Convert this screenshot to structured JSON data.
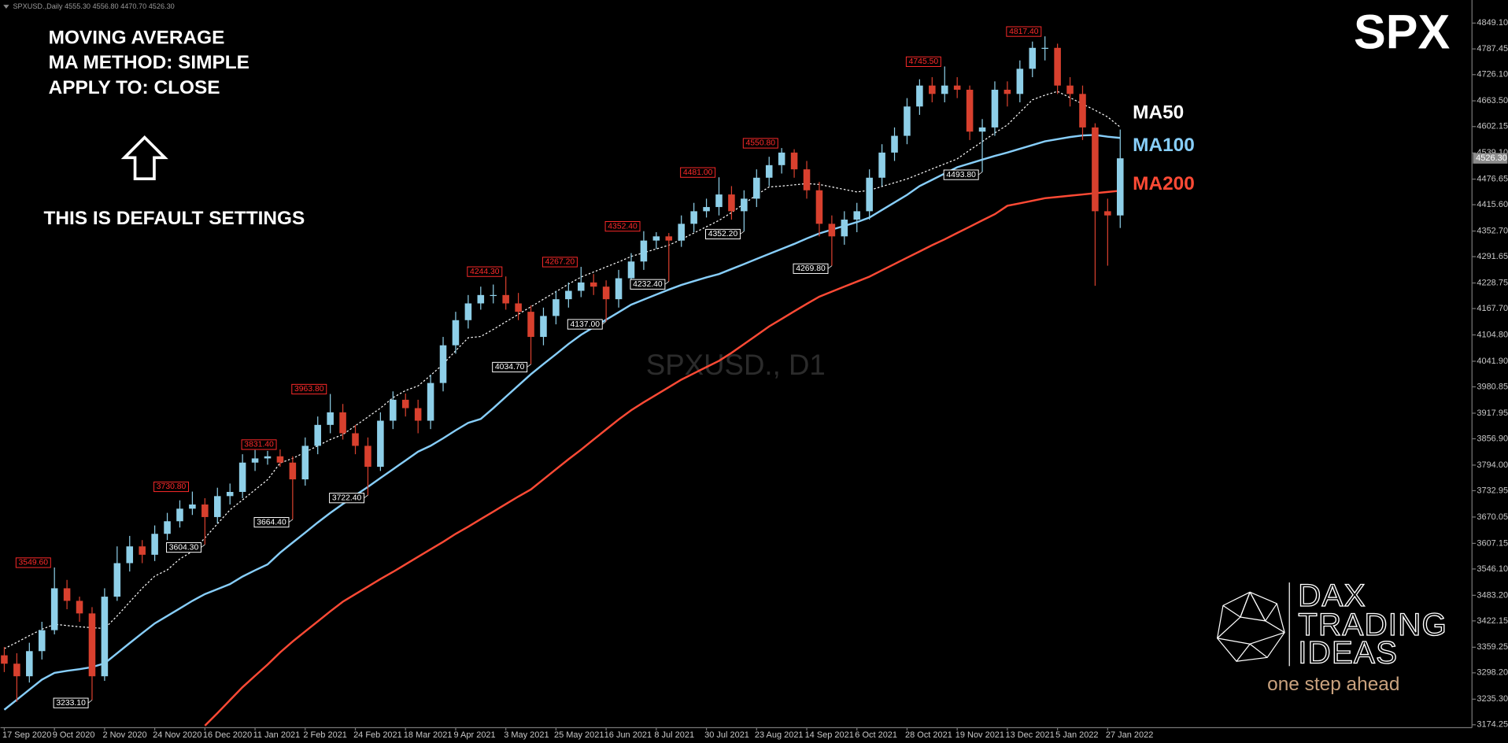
{
  "chart_data": {
    "type": "candlestick",
    "header": "SPXUSD.,Daily  4555.30 4556.80 4470.70 4526.30",
    "symbol_label": "SPX",
    "watermark": "SPXUSD., D1",
    "annotations": [
      "MOVING AVERAGE",
      "MA METHOD: SIMPLE",
      "APPLY TO: CLOSE",
      "THIS IS DEFAULT SETTINGS"
    ],
    "logo": {
      "lines": [
        "DAX",
        "TRADING",
        "IDEAS"
      ],
      "tagline": "one step ahead"
    },
    "categories": [
      "17 Sep 2020",
      null,
      null,
      null,
      "9 Oct 2020",
      null,
      null,
      null,
      "2 Nov 2020",
      null,
      null,
      null,
      "24 Nov 2020",
      null,
      null,
      null,
      "16 Dec 2020",
      null,
      null,
      null,
      "11 Jan 2021",
      null,
      null,
      null,
      "2 Feb 2021",
      null,
      null,
      null,
      "24 Feb 2021",
      null,
      null,
      null,
      "18 Mar 2021",
      null,
      null,
      null,
      "9 Apr 2021",
      null,
      null,
      null,
      "3 May 2021",
      null,
      null,
      null,
      "25 May 2021",
      null,
      null,
      null,
      "16 Jun 2021",
      null,
      null,
      null,
      "8 Jul 2021",
      null,
      null,
      null,
      "30 Jul 2021",
      null,
      null,
      null,
      "23 Aug 2021",
      null,
      null,
      null,
      "14 Sep 2021",
      null,
      null,
      null,
      "6 Oct 2021",
      null,
      null,
      null,
      "28 Oct 2021",
      null,
      null,
      null,
      "19 Nov 2021",
      null,
      null,
      null,
      "13 Dec 2021",
      null,
      null,
      null,
      "5 Jan 2022",
      null,
      null,
      null,
      "27 Jan 2022",
      null
    ],
    "open": [
      3340,
      3320,
      3290,
      3350,
      3400,
      3500,
      3470,
      3440,
      3290,
      3480,
      3560,
      3600,
      3580,
      3630,
      3660,
      3690,
      3700,
      3670,
      3720,
      3730,
      3800,
      3810,
      3815,
      3800,
      3760,
      3840,
      3890,
      3920,
      3870,
      3840,
      3790,
      3900,
      3950,
      3930,
      3900,
      3990,
      4080,
      4140,
      4180,
      4200,
      4200,
      4180,
      4160,
      4100,
      4150,
      4190,
      4210,
      4230,
      4220,
      4190,
      4240,
      4280,
      4330,
      4340,
      4330,
      4370,
      4400,
      4410,
      4440,
      4400,
      4430,
      4480,
      4510,
      4540,
      4500,
      4450,
      4370,
      4340,
      4380,
      4400,
      4480,
      4540,
      4580,
      4650,
      4700,
      4680,
      4700,
      4690,
      4590,
      4600,
      4690,
      4680,
      4740,
      4790,
      4790,
      4700,
      4680,
      4600,
      4400,
      4390
    ],
    "high": [
      3360,
      3345,
      3370,
      3420,
      3549.6,
      3520,
      3480,
      3455,
      3500,
      3600,
      3625,
      3615,
      3650,
      3680,
      3710,
      3730.8,
      3715,
      3740,
      3750,
      3820,
      3830,
      3828,
      3831.4,
      3815,
      3860,
      3910,
      3963.8,
      3940,
      3890,
      3860,
      3920,
      3970,
      3965,
      3950,
      4010,
      4100,
      4160,
      4200,
      4220,
      4225,
      4244.3,
      4205,
      4175,
      4170,
      4210,
      4230,
      4267.2,
      4250,
      4235,
      4260,
      4300,
      4352.4,
      4350,
      4348,
      4390,
      4420,
      4430,
      4481,
      4460,
      4450,
      4500,
      4530,
      4550.8,
      4548,
      4520,
      4470,
      4390,
      4400,
      4420,
      4500,
      4560,
      4600,
      4670,
      4715,
      4720,
      4745.5,
      4720,
      4700,
      4620,
      4710,
      4710,
      4760,
      4805,
      4817.4,
      4800,
      4720,
      4700,
      4610,
      4430,
      4595
    ],
    "low": [
      3300,
      3229,
      3275,
      3330,
      3390,
      3450,
      3420,
      3233.1,
      3279,
      3470,
      3540,
      3560,
      3565,
      3615,
      3645,
      3675,
      3604.3,
      3655,
      3700,
      3715,
      3780,
      3795,
      3790,
      3664.4,
      3745,
      3820,
      3870,
      3855,
      3820,
      3722.4,
      3780,
      3880,
      3910,
      3870,
      3880,
      3970,
      4060,
      4120,
      4165,
      4180,
      4165,
      4140,
      4034.7,
      4080,
      4130,
      4170,
      4195,
      4200,
      4137,
      4170,
      4220,
      4260,
      4310,
      4232.4,
      4315,
      4350,
      4385,
      4390,
      4380,
      4352.2,
      4410,
      4460,
      4490,
      4480,
      4430,
      4340,
      4269.8,
      4320,
      4350,
      4380,
      4460,
      4520,
      4560,
      4630,
      4660,
      4660,
      4670,
      4570,
      4493.8,
      4580,
      4650,
      4660,
      4720,
      4760,
      4680,
      4650,
      4570,
      4222,
      4270,
      4360
    ],
    "close": [
      3320,
      3290,
      3350,
      3400,
      3500,
      3470,
      3440,
      3290,
      3480,
      3560,
      3600,
      3580,
      3630,
      3660,
      3690,
      3700,
      3670,
      3720,
      3730,
      3800,
      3810,
      3815,
      3800,
      3760,
      3840,
      3890,
      3920,
      3870,
      3840,
      3790,
      3900,
      3950,
      3930,
      3900,
      3990,
      4080,
      4140,
      4180,
      4200,
      4200,
      4180,
      4160,
      4100,
      4150,
      4190,
      4210,
      4230,
      4220,
      4190,
      4240,
      4280,
      4330,
      4340,
      4330,
      4370,
      4400,
      4410,
      4440,
      4400,
      4430,
      4480,
      4510,
      4540,
      4500,
      4450,
      4370,
      4340,
      4380,
      4400,
      4480,
      4540,
      4580,
      4650,
      4700,
      4680,
      4700,
      4690,
      4590,
      4600,
      4690,
      4680,
      4740,
      4790,
      4790,
      4700,
      4680,
      4600,
      4400,
      4390,
      4526.3
    ],
    "high_labels": [
      null,
      null,
      null,
      null,
      "3549.60",
      null,
      null,
      null,
      null,
      null,
      null,
      null,
      null,
      null,
      null,
      "3730.80",
      null,
      null,
      null,
      null,
      null,
      null,
      "3831.40",
      null,
      null,
      null,
      "3963.80",
      null,
      null,
      null,
      null,
      null,
      null,
      null,
      null,
      null,
      null,
      null,
      null,
      null,
      "4244.30",
      null,
      null,
      null,
      null,
      null,
      "4267.20",
      null,
      null,
      null,
      null,
      "4352.40",
      null,
      null,
      null,
      null,
      null,
      "4481.00",
      null,
      null,
      null,
      null,
      "4550.80",
      null,
      null,
      null,
      null,
      null,
      null,
      null,
      null,
      null,
      null,
      null,
      null,
      "4745.50",
      null,
      null,
      null,
      null,
      null,
      null,
      null,
      "4817.40",
      null,
      null,
      null,
      null,
      null,
      null
    ],
    "low_labels": [
      null,
      null,
      null,
      null,
      null,
      null,
      null,
      "3233.10",
      null,
      null,
      null,
      null,
      null,
      null,
      null,
      null,
      "3604.30",
      null,
      null,
      null,
      null,
      null,
      null,
      "3664.40",
      null,
      null,
      null,
      null,
      null,
      "3722.40",
      null,
      null,
      null,
      null,
      null,
      null,
      null,
      null,
      null,
      null,
      null,
      null,
      "4034.70",
      null,
      null,
      null,
      null,
      null,
      "4137.00",
      null,
      null,
      null,
      null,
      "4232.40",
      null,
      null,
      null,
      null,
      null,
      "4352.20",
      null,
      null,
      null,
      null,
      null,
      null,
      "4269.80",
      null,
      null,
      null,
      null,
      null,
      null,
      null,
      null,
      null,
      null,
      null,
      "4493.80",
      null,
      null,
      null,
      null,
      null,
      null,
      null,
      null,
      null,
      null,
      null
    ],
    "up_color": "#8ecfe8",
    "down_color": "#d8402e",
    "high_label_color": "#ff2a2a",
    "low_label_color": "#ffffff",
    "series": [
      {
        "name": "MA50",
        "color": "#ffffff",
        "dashed": true,
        "values": [
          3356,
          3371,
          3387,
          3402,
          3414,
          3411,
          3408,
          3406,
          3404,
          3434,
          3467,
          3500,
          3529,
          3544,
          3570,
          3588,
          3620,
          3654,
          3687,
          3711,
          3735,
          3759,
          3799,
          3810,
          3825,
          3840,
          3855,
          3867,
          3888,
          3909,
          3930,
          3955,
          3972,
          3983,
          4008,
          4035,
          4067,
          4098,
          4101,
          4118,
          4136,
          4154,
          4172,
          4190,
          4208,
          4226,
          4243,
          4255,
          4267,
          4279,
          4292,
          4301,
          4310,
          4319,
          4333,
          4348,
          4363,
          4378,
          4397,
          4418,
          4439,
          4458,
          4460,
          4463,
          4466,
          4464,
          4458,
          4452,
          4446,
          4450,
          4459,
          4468,
          4477,
          4489,
          4501,
          4513,
          4525,
          4546,
          4566,
          4587,
          4606,
          4636,
          4666,
          4677,
          4686,
          4671,
          4656,
          4641,
          4625,
          4601
        ]
      },
      {
        "name": "MA100",
        "color": "#87cefa",
        "values": [
          3210,
          3234,
          3258,
          3282,
          3298,
          3303,
          3307,
          3312,
          3321,
          3345,
          3369,
          3393,
          3416,
          3434,
          3452,
          3470,
          3486,
          3498,
          3510,
          3528,
          3543,
          3557,
          3585,
          3609,
          3633,
          3657,
          3680,
          3701,
          3722,
          3742,
          3763,
          3784,
          3805,
          3826,
          3840,
          3858,
          3877,
          3895,
          3904,
          3930,
          3957,
          3984,
          4011,
          4035,
          4059,
          4083,
          4105,
          4123,
          4141,
          4159,
          4177,
          4189,
          4201,
          4213,
          4224,
          4233,
          4242,
          4250,
          4262,
          4274,
          4286,
          4298,
          4310,
          4322,
          4335,
          4347,
          4356,
          4365,
          4374,
          4385,
          4403,
          4421,
          4439,
          4460,
          4475,
          4490,
          4505,
          4514,
          4523,
          4532,
          4540,
          4549,
          4558,
          4567,
          4572,
          4577,
          4581,
          4582,
          4578,
          4575
        ]
      },
      {
        "name": "MA200",
        "color": "#ff4a35",
        "values": [
          null,
          null,
          null,
          null,
          null,
          null,
          null,
          null,
          null,
          null,
          null,
          null,
          null,
          null,
          null,
          null,
          3172,
          3202,
          3233,
          3264,
          3291,
          3318,
          3347,
          3373,
          3397,
          3421,
          3445,
          3468,
          3486,
          3504,
          3522,
          3539,
          3557,
          3575,
          3593,
          3611,
          3630,
          3647,
          3665,
          3683,
          3701,
          3719,
          3736,
          3760,
          3784,
          3808,
          3831,
          3855,
          3879,
          3903,
          3925,
          3944,
          3962,
          3980,
          3998,
          4013,
          4028,
          4043,
          4062,
          4083,
          4104,
          4125,
          4143,
          4161,
          4179,
          4196,
          4208,
          4220,
          4232,
          4244,
          4259,
          4274,
          4289,
          4304,
          4319,
          4333,
          4348,
          4363,
          4378,
          4393,
          4413,
          4419,
          4425,
          4431,
          4434,
          4437,
          4440,
          4443,
          4446,
          4449
        ]
      }
    ],
    "last_price": {
      "value": 4526.3,
      "label": "4526.30"
    },
    "ylim": [
      3167.4,
      4904.2
    ],
    "yticks": [
      {
        "value": 4849.1,
        "label": "4849.10"
      },
      4787.45,
      {
        "value": 4726.1,
        "label": "4726.10"
      },
      {
        "value": 4663.5,
        "label": "4663.50"
      },
      4602.15,
      {
        "value": 4539.1,
        "label": "4539.10"
      },
      4476.65,
      {
        "value": 4415.6,
        "label": "4415.60"
      },
      {
        "value": 4352.7,
        "label": "4352.70"
      },
      4291.65,
      4228.75,
      {
        "value": 4167.7,
        "label": "4167.70"
      },
      {
        "value": 4104.8,
        "label": "4104.80"
      },
      {
        "value": 4041.9,
        "label": "4041.90"
      },
      3980.85,
      3917.95,
      {
        "value": 3856.9,
        "label": "3856.90"
      },
      {
        "value": 3794,
        "label": "3794.00"
      },
      3732.95,
      3670.05,
      3607.15,
      {
        "value": 3546.1,
        "label": "3546.10"
      },
      {
        "value": 3483.2,
        "label": "3483.20"
      },
      3422.15,
      3359.25,
      {
        "value": 3298.2,
        "label": "3298.20"
      },
      {
        "value": 3235.3,
        "label": "3235.30"
      },
      3174.25
    ],
    "grid": false
  }
}
